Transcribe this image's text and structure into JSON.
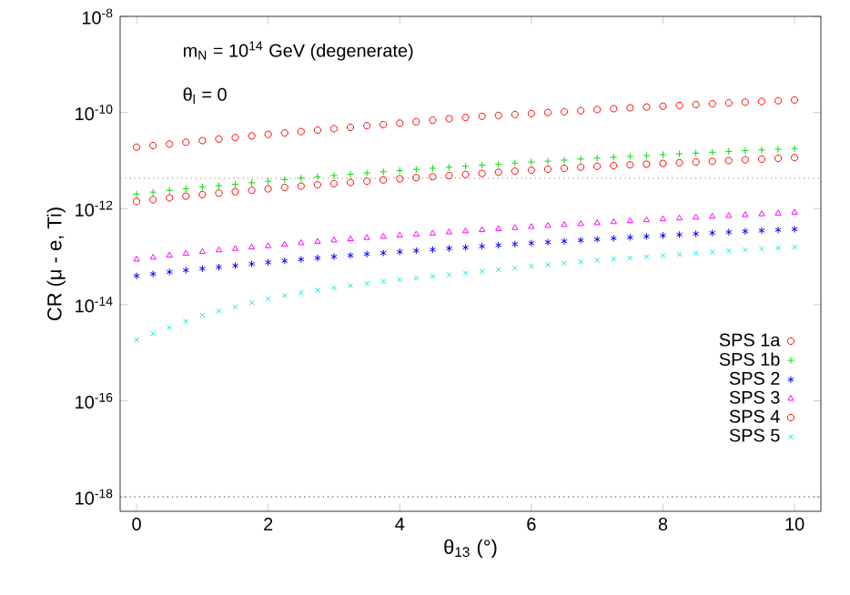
{
  "chart_data": {
    "type": "scatter",
    "xlabel": "θ$_{13}$  (°)",
    "ylabel": "CR (μ - e, Ti)",
    "annotations": [
      "m$_{N}$ = 10$^{14}$ GeV  (degenerate)",
      "θ$_{l}$ = 0"
    ],
    "log": "y",
    "legend": "bottom right",
    "grid": false,
    "xlim": [
      -0.25,
      10.4
    ],
    "xticks": [
      0,
      2,
      4,
      6,
      8,
      10
    ],
    "ylim": [
      5e-19,
      1e-08
    ],
    "yticks": [
      {
        "value": 1e-18,
        "label": "10$^{-18}$"
      },
      {
        "value": 1e-16,
        "label": "10$^{-16}$"
      },
      {
        "value": 1e-14,
        "label": "10$^{-14}$"
      },
      {
        "value": 1e-12,
        "label": "10$^{-12}$"
      },
      {
        "value": 1e-10,
        "label": "10$^{-10}$"
      },
      {
        "value": 1e-08,
        "label": "10$^{-8}$"
      }
    ],
    "x": [
      0,
      0.25,
      0.5,
      0.75,
      1,
      1.25,
      1.5,
      1.75,
      2,
      2.25,
      2.5,
      2.75,
      3,
      3.25,
      3.5,
      3.75,
      4,
      4.25,
      4.5,
      4.75,
      5,
      5.25,
      5.5,
      5.75,
      6,
      6.25,
      6.5,
      6.75,
      7,
      7.25,
      7.5,
      7.75,
      8,
      8.25,
      8.5,
      8.75,
      9,
      9.25,
      9.5,
      9.75,
      10
    ],
    "ref_lines": [
      {
        "axis": "y",
        "value": 4.3e-12,
        "color": "#999999",
        "line_style": "dotted"
      },
      {
        "axis": "y",
        "value": 1e-18,
        "color": "#555555",
        "line_style": "dotted"
      }
    ],
    "series": [
      {
        "name": "SPS 1a",
        "color": "#ff0000",
        "marker": "circle",
        "values": [
          1.41e-12,
          1.53e-12,
          1.67e-12,
          1.81e-12,
          1.95e-12,
          2.1e-12,
          2.25e-12,
          2.4e-12,
          2.57e-12,
          2.75e-12,
          2.93e-12,
          3.12e-12,
          3.31e-12,
          3.5e-12,
          3.7e-12,
          3.95e-12,
          4.17e-12,
          4.4e-12,
          4.6e-12,
          4.85e-12,
          5.13e-12,
          5.4e-12,
          5.7e-12,
          6e-12,
          6.31e-12,
          6.6e-12,
          6.9e-12,
          7.25e-12,
          7.59e-12,
          7.85e-12,
          8.15e-12,
          8.4e-12,
          8.71e-12,
          9e-12,
          9.3e-12,
          9.65e-12,
          1e-11,
          1.04e-11,
          1.07e-11,
          1.11e-11,
          1.15e-11
        ]
      },
      {
        "name": "SPS 1b",
        "color": "#00e000",
        "marker": "plus",
        "values": [
          2e-12,
          2.2e-12,
          2.4e-12,
          2.6e-12,
          2.8e-12,
          3e-12,
          3.2e-12,
          3.45e-12,
          3.7e-12,
          4e-12,
          4.3e-12,
          4.6e-12,
          4.9e-12,
          5.2e-12,
          5.5e-12,
          5.85e-12,
          6.2e-12,
          6.55e-12,
          6.9e-12,
          7.25e-12,
          7.6e-12,
          8e-12,
          8.4e-12,
          8.85e-12,
          9.3e-12,
          9.7e-12,
          1.02e-11,
          1.07e-11,
          1.12e-11,
          1.17e-11,
          1.22e-11,
          1.27e-11,
          1.32e-11,
          1.38e-11,
          1.43e-11,
          1.49e-11,
          1.55e-11,
          1.61e-11,
          1.66e-11,
          1.72e-11,
          1.78e-11
        ]
      },
      {
        "name": "SPS 2",
        "color": "#0000ff",
        "values": [
          3.98e-14,
          4.35e-14,
          4.8e-14,
          5.2e-14,
          5.62e-14,
          6.05e-14,
          6.5e-14,
          7.05e-14,
          7.59e-14,
          8.15e-14,
          8.75e-14,
          9.35e-14,
          1e-13,
          1.06e-13,
          1.13e-13,
          1.19e-13,
          1.26e-13,
          1.33e-13,
          1.4e-13,
          1.48e-13,
          1.55e-13,
          1.64e-13,
          1.73e-13,
          1.82e-13,
          1.91e-13,
          2e-13,
          2.09e-13,
          2.19e-13,
          2.29e-13,
          2.4e-13,
          2.51e-13,
          2.63e-13,
          2.75e-13,
          2.87e-13,
          2.99e-13,
          3.11e-13,
          3.24e-13,
          3.36e-13,
          3.48e-13,
          3.6e-13,
          3.72e-13
        ]
      },
      {
        "name": "SPS 3",
        "color": "#ff00ff",
        "marker": "triangle",
        "values": [
          8.7e-14,
          9.6e-14,
          1.06e-13,
          1.16e-13,
          1.26e-13,
          1.36e-13,
          1.46e-13,
          1.56e-13,
          1.66e-13,
          1.78e-13,
          1.92e-13,
          2.05e-13,
          2.19e-13,
          2.32e-13,
          2.46e-13,
          2.6e-13,
          2.75e-13,
          2.9e-13,
          3.05e-13,
          3.22e-13,
          3.39e-13,
          3.58e-13,
          3.78e-13,
          3.97e-13,
          4.17e-13,
          4.38e-13,
          4.59e-13,
          4.8e-13,
          5.01e-13,
          5.26e-13,
          5.51e-13,
          5.76e-13,
          6.03e-13,
          6.28e-13,
          6.55e-13,
          6.81e-13,
          7.08e-13,
          7.37e-13,
          7.65e-13,
          7.94e-13,
          8.32e-13
        ]
      },
      {
        "name": "SPS 4",
        "color": "#ff0000",
        "marker": "circle",
        "values": [
          1.9e-11,
          2.05e-11,
          2.2e-11,
          2.4e-11,
          2.6e-11,
          2.8e-11,
          3e-11,
          3.25e-11,
          3.5e-11,
          3.75e-11,
          4e-11,
          4.3e-11,
          4.6e-11,
          4.9e-11,
          5.3e-11,
          5.6e-11,
          6e-11,
          6.4e-11,
          6.9e-11,
          7.4e-11,
          7.9e-11,
          8.3e-11,
          8.7e-11,
          9.1e-11,
          9.5e-11,
          1e-10,
          1.04e-10,
          1.09e-10,
          1.15e-10,
          1.2e-10,
          1.25e-10,
          1.3e-10,
          1.35e-10,
          1.4e-10,
          1.46e-10,
          1.52e-10,
          1.58e-10,
          1.64e-10,
          1.7e-10,
          1.76e-10,
          1.82e-10
        ]
      },
      {
        "name": "SPS 5",
        "color": "#00e8e8",
        "marker": "cross",
        "values": [
          1.86e-15,
          2.5e-15,
          3.35e-15,
          4.5e-15,
          6.03e-15,
          7.4e-15,
          9e-15,
          1.1e-14,
          1.32e-14,
          1.54e-14,
          1.79e-14,
          2e-14,
          2.24e-14,
          2.48e-14,
          2.75e-14,
          3.03e-14,
          3.31e-14,
          3.58e-14,
          3.88e-14,
          4.21e-14,
          4.57e-14,
          4.95e-14,
          5.37e-14,
          5.82e-14,
          6.31e-14,
          6.79e-14,
          7.27e-14,
          7.8e-14,
          8.32e-14,
          8.83e-14,
          9.35e-14,
          9.92e-14,
          1.05e-13,
          1.11e-13,
          1.18e-13,
          1.25e-13,
          1.32e-13,
          1.38e-13,
          1.45e-13,
          1.51e-13,
          1.58e-13
        ]
      }
    ]
  }
}
